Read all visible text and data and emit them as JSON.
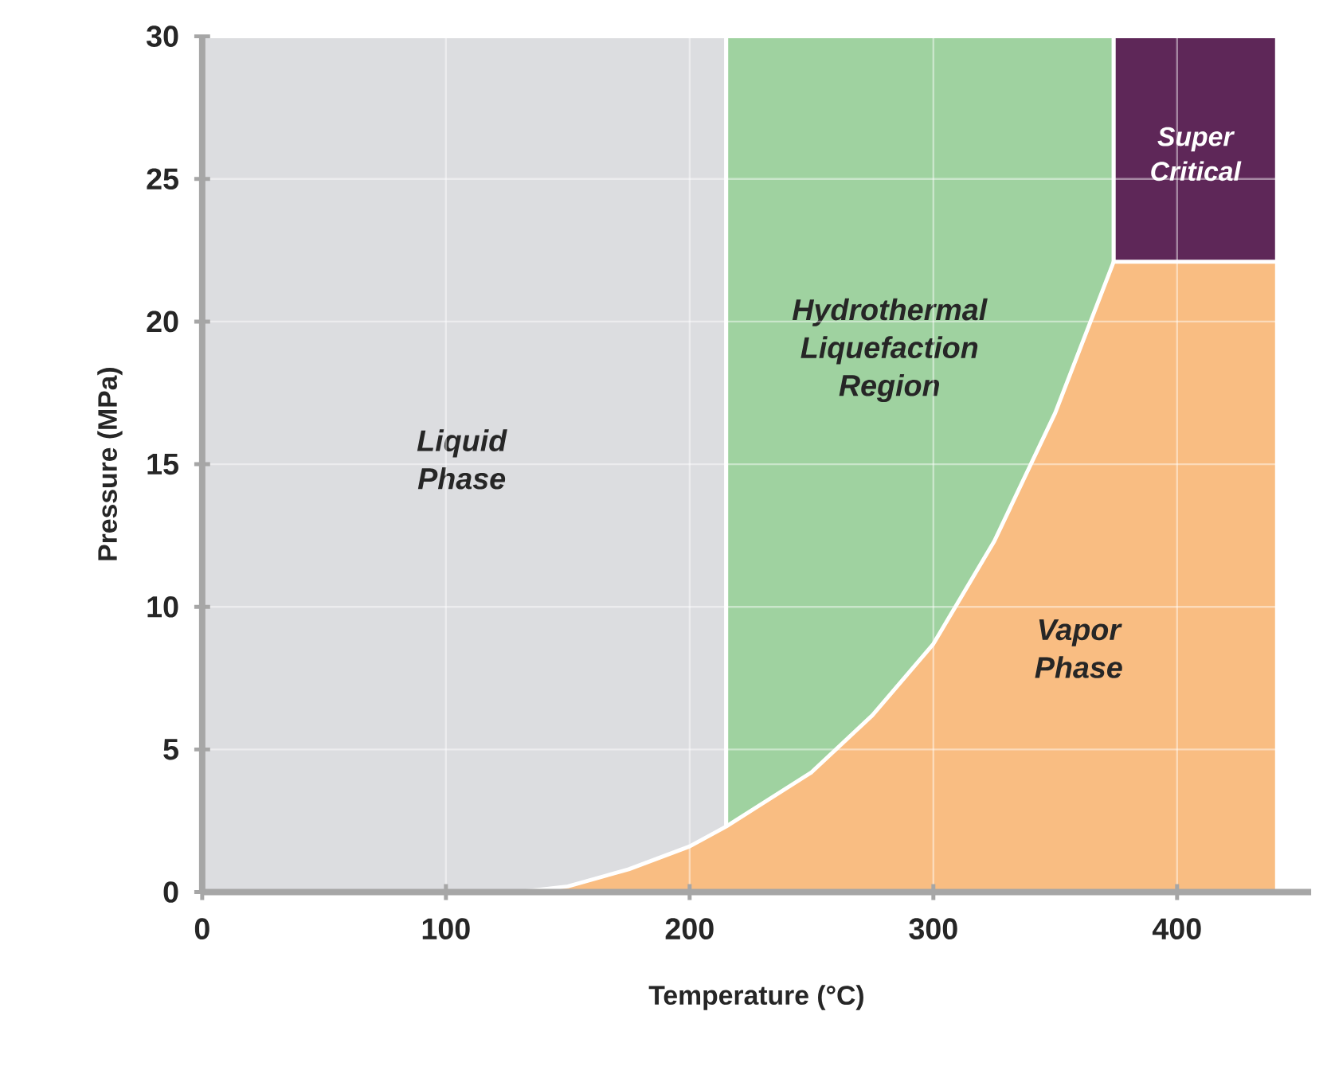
{
  "chart_data": {
    "type": "area",
    "xlabel": "Temperature (°C)",
    "ylabel": "Pressure (MPa)",
    "xlim": [
      0,
      455
    ],
    "ylim": [
      0,
      30
    ],
    "xticks": [
      0,
      100,
      200,
      300,
      400
    ],
    "yticks": [
      0,
      5,
      10,
      15,
      20,
      25,
      30
    ],
    "grid": true,
    "legend": false,
    "series": [
      {
        "name": "Liquid Phase",
        "color": "#dcdde0",
        "x": [
          0,
          215
        ],
        "values": [
          30,
          30
        ]
      },
      {
        "name": "Hydrothermal Liquefaction Region",
        "color": "#9fd2a0",
        "x": [
          215,
          374
        ],
        "values": [
          30,
          30
        ]
      },
      {
        "name": "Super Critical",
        "color": "#5e2758",
        "x": [
          374,
          441
        ],
        "values": [
          30,
          30
        ]
      },
      {
        "name": "Vapor Phase",
        "color": "#f9bd82",
        "x": [
          130,
          150,
          175,
          200,
          215,
          250,
          275,
          300,
          325,
          350,
          374,
          441
        ],
        "values": [
          0,
          0.2,
          0.8,
          1.6,
          2.3,
          4.2,
          6.2,
          8.7,
          12.3,
          16.8,
          22.1,
          22.1
        ]
      }
    ]
  }
}
